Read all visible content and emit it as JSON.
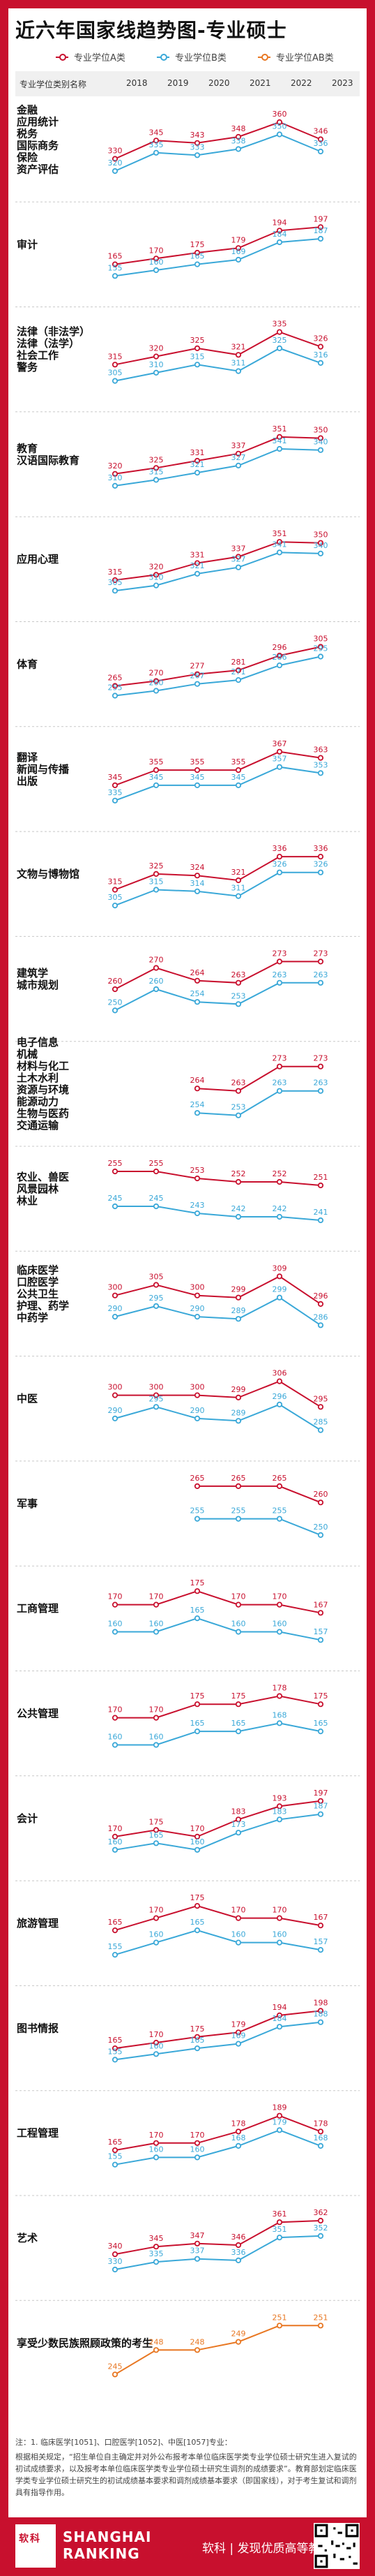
{
  "page_title": "近六年国家线趋势图-专业硕士",
  "legend": [
    {
      "label": "专业学位A类",
      "color": "#c8102e"
    },
    {
      "label": "专业学位B类",
      "color": "#3aa8d8"
    },
    {
      "label": "专业学位AB类",
      "color": "#e87722"
    }
  ],
  "header": {
    "category_label": "专业学位类别名称",
    "years": [
      "2018",
      "2019",
      "2020",
      "2021",
      "2022",
      "2023"
    ]
  },
  "colors": {
    "brand_red": "#c8102e",
    "a_color": "#c8102e",
    "b_color": "#3aa8d8",
    "ab_color": "#e87722"
  },
  "chart_data": {
    "type": "line",
    "x": [
      "2018",
      "2019",
      "2020",
      "2021",
      "2022",
      "2023"
    ],
    "panels": [
      {
        "category": "金融、应用统计、税务、国际商务、保险、资产评估",
        "series": [
          {
            "name": "专业学位A类",
            "values": [
              330,
              345,
              343,
              348,
              360,
              346
            ]
          },
          {
            "name": "专业学位B类",
            "values": [
              320,
              335,
              333,
              338,
              350,
              336
            ]
          }
        ]
      },
      {
        "category": "审计",
        "series": [
          {
            "name": "专业学位A类",
            "values": [
              165,
              170,
              175,
              179,
              194,
              197
            ]
          },
          {
            "name": "专业学位B类",
            "values": [
              155,
              160,
              165,
              169,
              184,
              187
            ]
          }
        ]
      },
      {
        "category": "法律（非法学）、法律（法学）、社会工作、警务",
        "series": [
          {
            "name": "专业学位A类",
            "values": [
              315,
              320,
              325,
              321,
              335,
              326
            ]
          },
          {
            "name": "专业学位B类",
            "values": [
              305,
              310,
              315,
              311,
              325,
              316
            ]
          }
        ]
      },
      {
        "category": "教育、汉语国际教育",
        "series": [
          {
            "name": "专业学位A类",
            "values": [
              320,
              325,
              331,
              337,
              351,
              350
            ]
          },
          {
            "name": "专业学位B类",
            "values": [
              310,
              315,
              321,
              327,
              341,
              340
            ]
          }
        ]
      },
      {
        "category": "应用心理",
        "series": [
          {
            "name": "专业学位A类",
            "values": [
              315,
              320,
              331,
              337,
              351,
              350
            ]
          },
          {
            "name": "专业学位B类",
            "values": [
              305,
              310,
              321,
              327,
              341,
              340
            ]
          }
        ]
      },
      {
        "category": "体育",
        "series": [
          {
            "name": "专业学位A类",
            "values": [
              265,
              270,
              277,
              281,
              296,
              305
            ]
          },
          {
            "name": "专业学位B类",
            "values": [
              255,
              260,
              267,
              271,
              286,
              295
            ]
          }
        ]
      },
      {
        "category": "翻译、新闻与传播、出版",
        "series": [
          {
            "name": "专业学位A类",
            "values": [
              345,
              355,
              355,
              355,
              367,
              363
            ]
          },
          {
            "name": "专业学位B类",
            "values": [
              335,
              345,
              345,
              345,
              357,
              353
            ]
          }
        ]
      },
      {
        "category": "文物与博物馆",
        "series": [
          {
            "name": "专业学位A类",
            "values": [
              315,
              325,
              324,
              321,
              336,
              336
            ]
          },
          {
            "name": "专业学位B类",
            "values": [
              305,
              315,
              314,
              311,
              326,
              326
            ]
          }
        ]
      },
      {
        "category": "建筑学、城市规划",
        "series": [
          {
            "name": "专业学位A类",
            "values": [
              260,
              270,
              264,
              263,
              273,
              273
            ]
          },
          {
            "name": "专业学位B类",
            "values": [
              250,
              260,
              254,
              253,
              263,
              263
            ]
          }
        ]
      },
      {
        "category": "电子信息、机械、材料与化工、土木水利、资源与环境、能源动力、生物与医药、交通运输",
        "series": [
          {
            "name": "专业学位A类",
            "values": [
              null,
              null,
              264,
              263,
              273,
              273
            ]
          },
          {
            "name": "专业学位B类",
            "values": [
              null,
              null,
              254,
              253,
              263,
              263
            ]
          }
        ]
      },
      {
        "category": "农业、兽医、风景园林、林业",
        "series": [
          {
            "name": "专业学位A类",
            "values": [
              255,
              255,
              253,
              252,
              252,
              251
            ]
          },
          {
            "name": "专业学位B类",
            "values": [
              245,
              245,
              243,
              242,
              242,
              241
            ]
          }
        ]
      },
      {
        "category": "临床医学、口腔医学、公共卫生、护理、药学、中药学",
        "series": [
          {
            "name": "专业学位A类",
            "values": [
              300,
              305,
              300,
              299,
              309,
              296
            ]
          },
          {
            "name": "专业学位B类",
            "values": [
              290,
              295,
              290,
              289,
              299,
              286
            ]
          }
        ]
      },
      {
        "category": "中医",
        "series": [
          {
            "name": "专业学位A类",
            "values": [
              300,
              300,
              300,
              299,
              306,
              295
            ]
          },
          {
            "name": "专业学位B类",
            "values": [
              290,
              295,
              290,
              289,
              296,
              285
            ]
          }
        ]
      },
      {
        "category": "军事",
        "series": [
          {
            "name": "专业学位A类",
            "values": [
              null,
              null,
              265,
              265,
              265,
              260
            ]
          },
          {
            "name": "专业学位B类",
            "values": [
              null,
              null,
              255,
              255,
              255,
              250
            ]
          }
        ]
      },
      {
        "category": "工商管理",
        "series": [
          {
            "name": "专业学位A类",
            "values": [
              170,
              170,
              175,
              170,
              170,
              167
            ]
          },
          {
            "name": "专业学位B类",
            "values": [
              160,
              160,
              165,
              160,
              160,
              157
            ]
          }
        ]
      },
      {
        "category": "公共管理",
        "series": [
          {
            "name": "专业学位A类",
            "values": [
              170,
              170,
              175,
              175,
              178,
              175
            ]
          },
          {
            "name": "专业学位B类",
            "values": [
              160,
              160,
              165,
              165,
              168,
              165
            ]
          }
        ]
      },
      {
        "category": "会计",
        "series": [
          {
            "name": "专业学位A类",
            "values": [
              170,
              175,
              170,
              183,
              193,
              197
            ]
          },
          {
            "name": "专业学位B类",
            "values": [
              160,
              165,
              160,
              173,
              183,
              187
            ]
          }
        ]
      },
      {
        "category": "旅游管理",
        "series": [
          {
            "name": "专业学位A类",
            "values": [
              165,
              170,
              175,
              170,
              170,
              167
            ]
          },
          {
            "name": "专业学位B类",
            "values": [
              155,
              160,
              165,
              160,
              160,
              157
            ]
          }
        ]
      },
      {
        "category": "图书情报",
        "series": [
          {
            "name": "专业学位A类",
            "values": [
              165,
              170,
              175,
              179,
              194,
              198
            ]
          },
          {
            "name": "专业学位B类",
            "values": [
              155,
              160,
              165,
              169,
              184,
              188
            ]
          }
        ]
      },
      {
        "category": "工程管理",
        "series": [
          {
            "name": "专业学位A类",
            "values": [
              165,
              170,
              170,
              178,
              189,
              178
            ]
          },
          {
            "name": "专业学位B类",
            "values": [
              155,
              160,
              160,
              168,
              179,
              168
            ]
          }
        ]
      },
      {
        "category": "艺术",
        "series": [
          {
            "name": "专业学位A类",
            "values": [
              340,
              345,
              347,
              346,
              361,
              362
            ]
          },
          {
            "name": "专业学位B类",
            "values": [
              330,
              335,
              337,
              336,
              351,
              352
            ]
          }
        ]
      },
      {
        "category": "享受少数民族照顾政策的考生",
        "series": [
          {
            "name": "专业学位AB类",
            "values": [
              245,
              248,
              248,
              249,
              251,
              251
            ]
          }
        ]
      }
    ]
  },
  "footnote": {
    "note_1": "注：1. 临床医学[1051]、口腔医学[1052]、中医[1057]专业：",
    "note_2": "根据相关规定，“招生单位自主确定并对外公布报考本单位临床医学类专业学位硕士研究生进入复试的初试成绩要求，以及报考本单位临床医学类专业学位硕士研究生调剂的成绩要求”。教育部划定临床医学类专业学位硕士研究生的初试成绩基本要求和调剂成绩基本要求（即国家线），对于考生复试和调剂具有指导作用。"
  },
  "footer": {
    "logo_text": "软科",
    "brand_line1": "SHANGHAI",
    "brand_line2": "RANKING",
    "slogan": "软科 | 发现优质高等教育"
  }
}
